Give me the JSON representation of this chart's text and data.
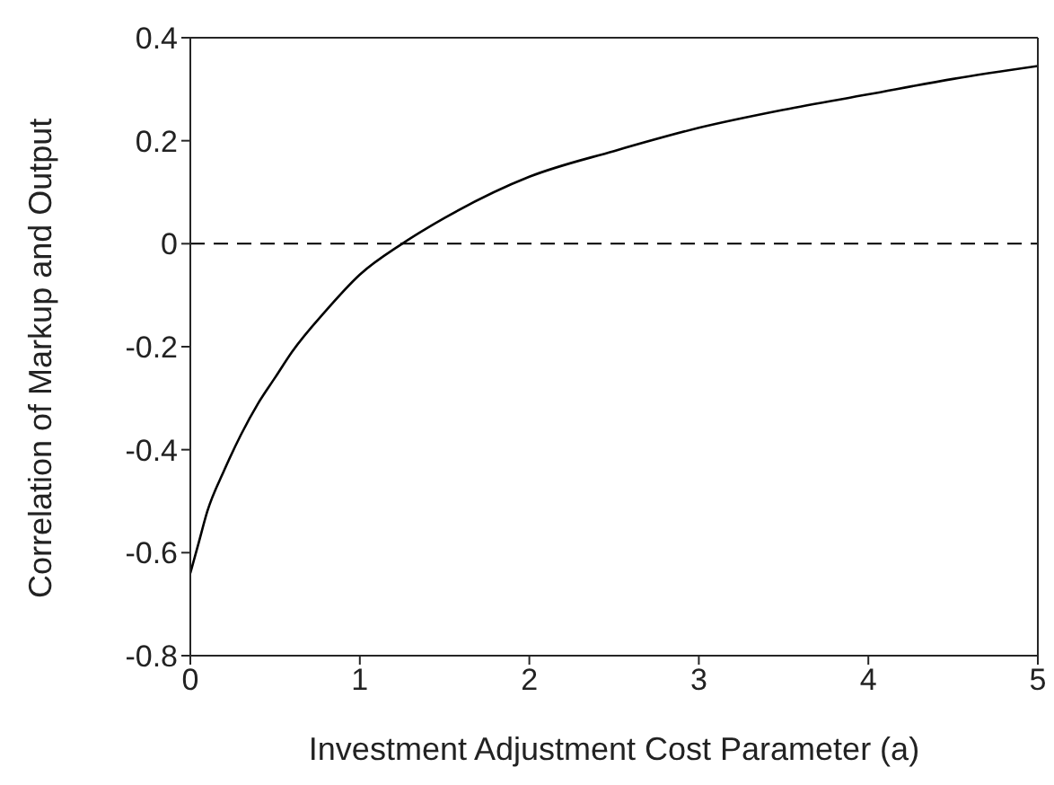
{
  "chart_data": {
    "type": "line",
    "xlabel": "Investment Adjustment Cost Parameter (a)",
    "ylabel": "Correlation of Markup and Output",
    "x": [
      0,
      0.05,
      0.1,
      0.2,
      0.3,
      0.4,
      0.5,
      0.6,
      0.8,
      1,
      1.25,
      1.5,
      2,
      2.5,
      3,
      3.5,
      4,
      4.5,
      5
    ],
    "series": [
      {
        "color": "#000000",
        "values": [
          -0.64,
          -0.58,
          -0.52,
          -0.44,
          -0.37,
          -0.31,
          -0.26,
          -0.21,
          -0.13,
          -0.06,
          0.0,
          0.05,
          0.13,
          0.18,
          0.225,
          0.26,
          0.29,
          0.32,
          0.345
        ]
      }
    ],
    "xlim": [
      0,
      5
    ],
    "ylim": [
      -0.8,
      0.4
    ],
    "xticks": [
      0,
      1,
      2,
      3,
      4,
      5
    ],
    "yticks": [
      -0.8,
      -0.6,
      -0.4,
      -0.2,
      0,
      0.2,
      0.4
    ],
    "ref_lines": [
      {
        "axis": "y",
        "value": 0,
        "color": "#000000",
        "line_style": "dashed"
      }
    ]
  }
}
